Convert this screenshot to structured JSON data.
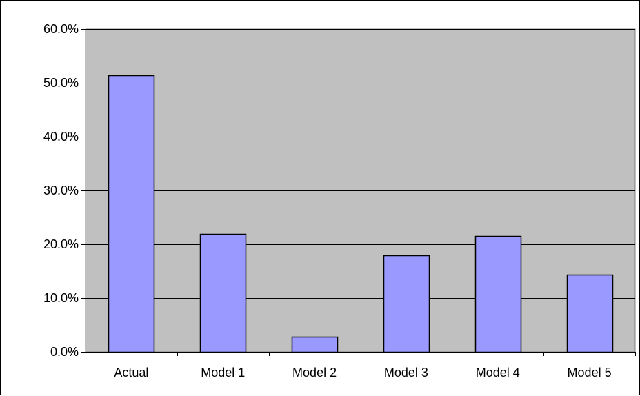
{
  "chart_data": {
    "type": "bar",
    "title": "",
    "xlabel": "",
    "ylabel": "",
    "categories": [
      "Actual",
      "Model 1",
      "Model 2",
      "Model 3",
      "Model 4",
      "Model 5"
    ],
    "values": [
      51.4,
      21.9,
      2.8,
      18.0,
      21.6,
      14.3
    ],
    "ylim": [
      0,
      60
    ],
    "ytick_values": [
      0,
      10,
      20,
      30,
      40,
      50,
      60
    ],
    "ytick_labels": [
      "0.0%",
      "10.0%",
      "20.0%",
      "30.0%",
      "40.0%",
      "50.0%",
      "60.0%"
    ],
    "grid": true,
    "legend": "none",
    "colors": {
      "bar_fill": "#9999ff",
      "bar_stroke": "#000000",
      "plot_background": "#c0c0c0",
      "gridline": "#000000"
    }
  }
}
